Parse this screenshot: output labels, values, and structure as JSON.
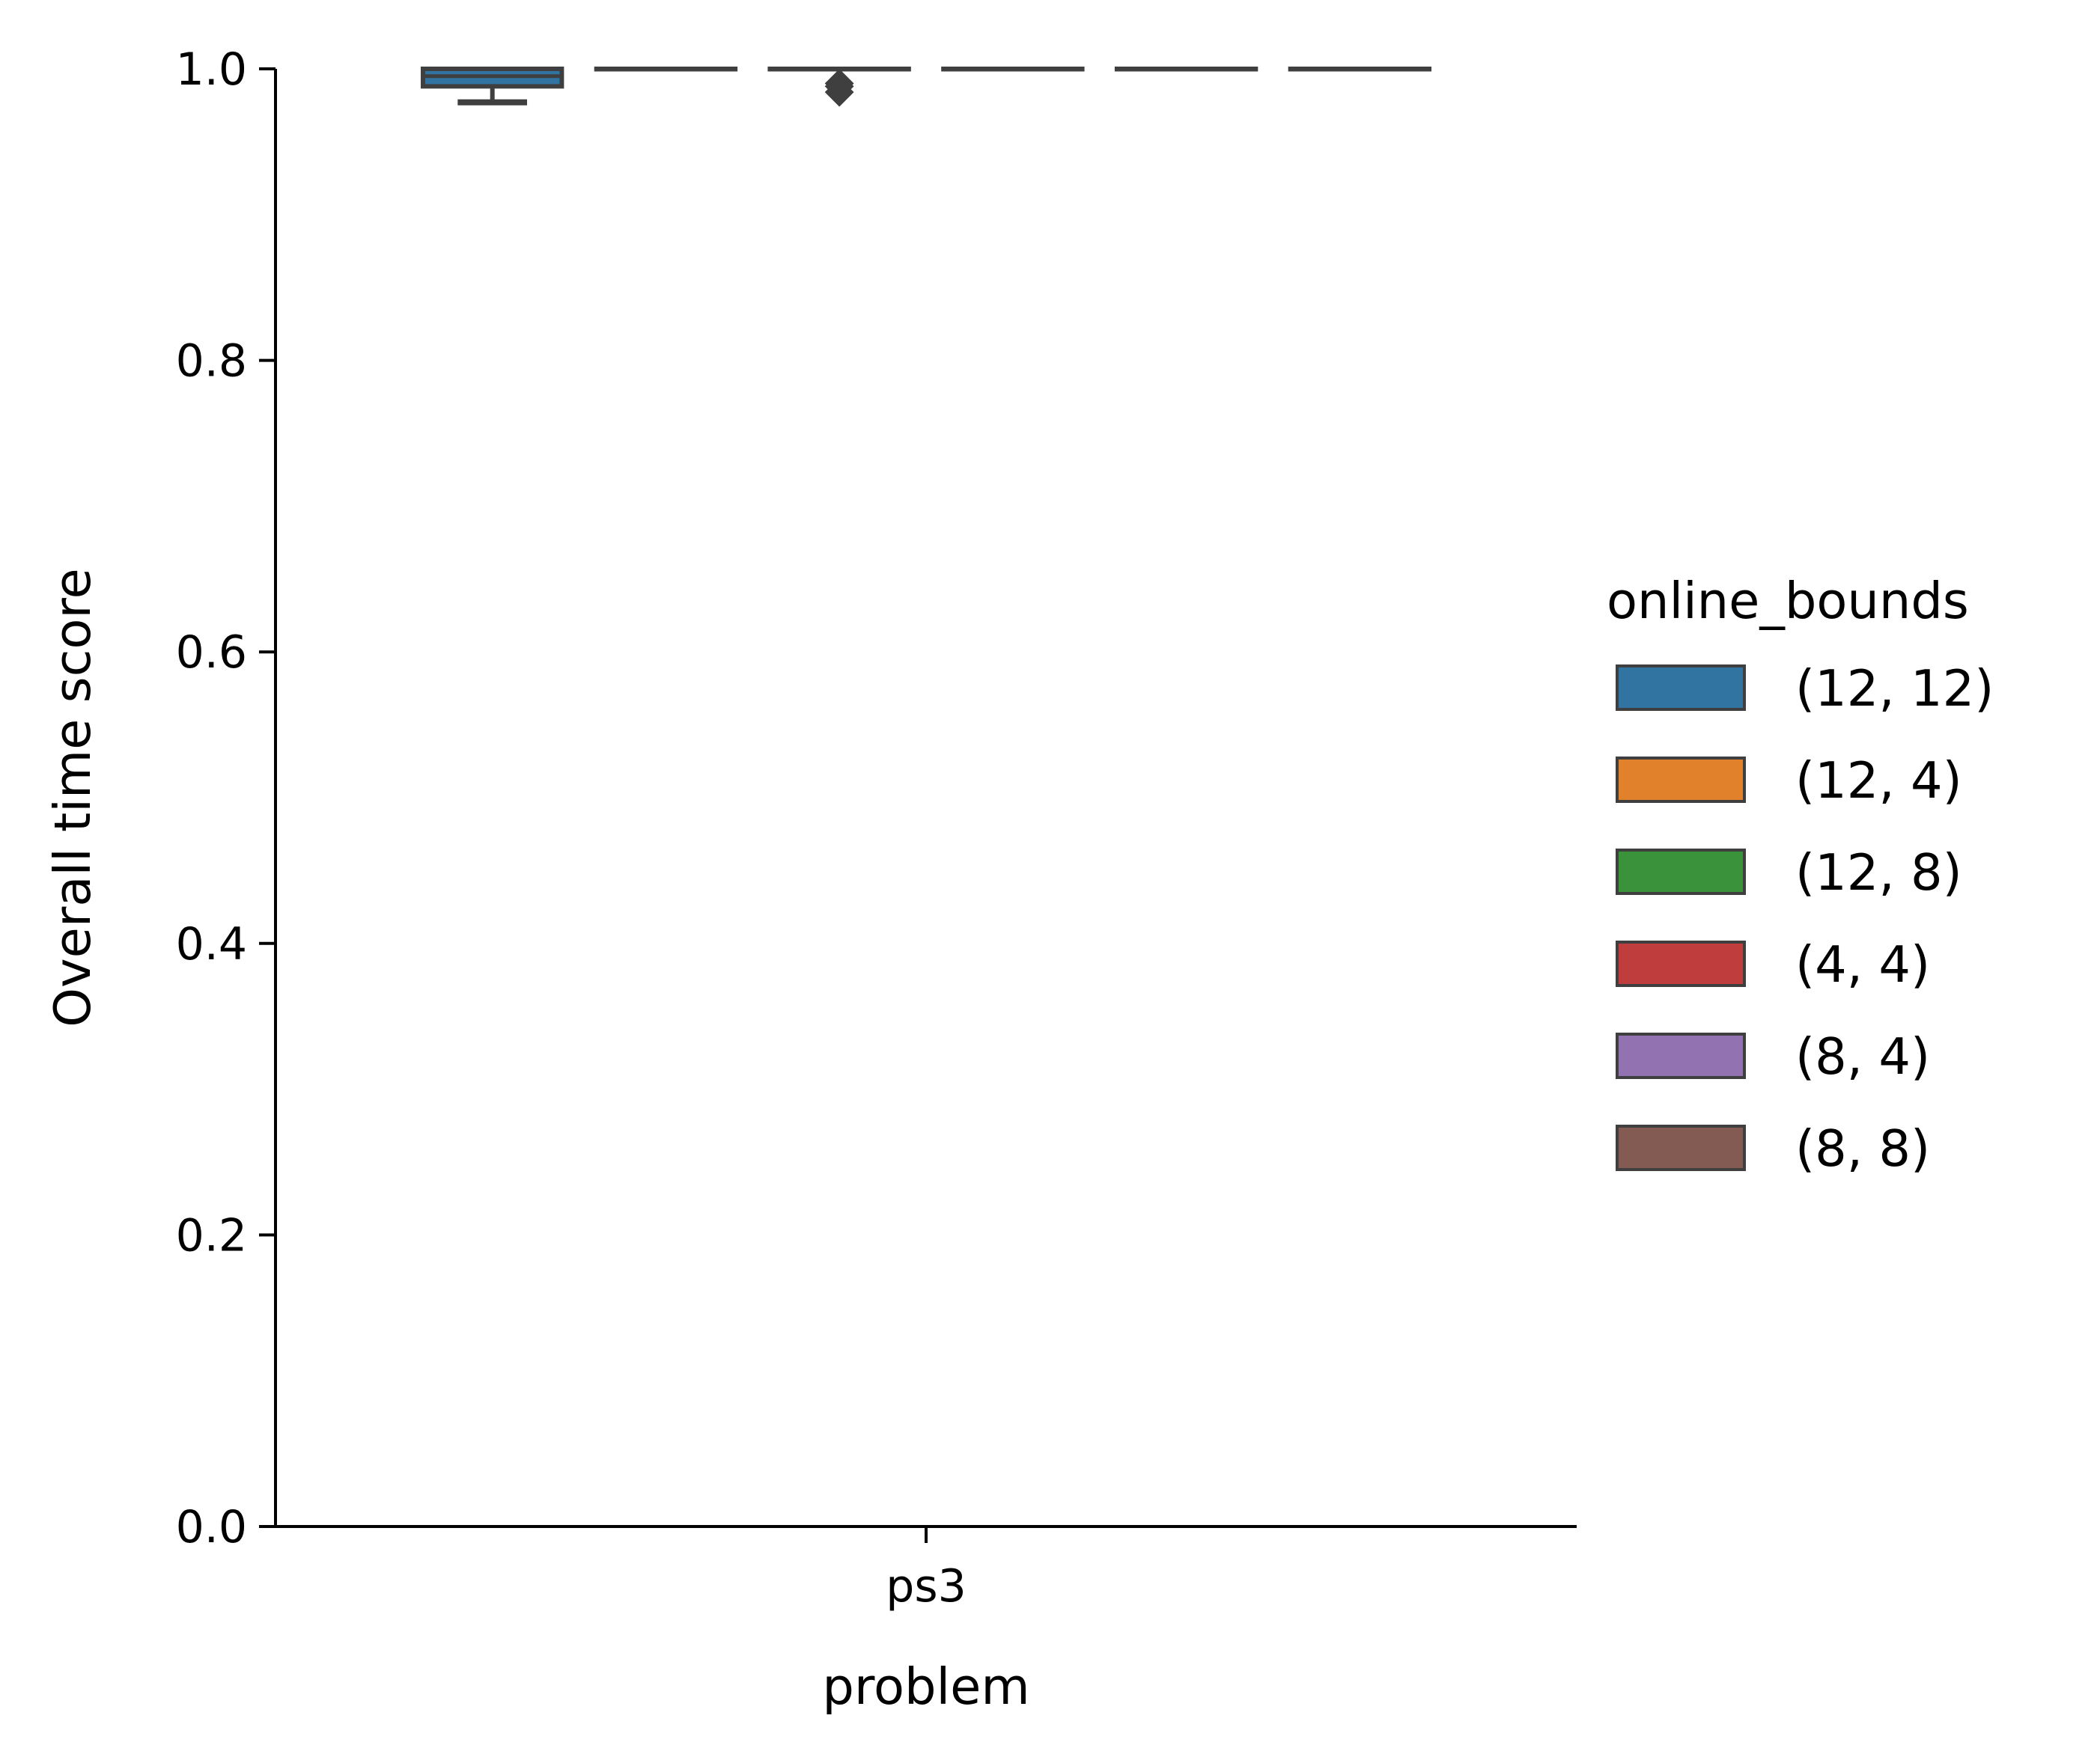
{
  "chart_data": {
    "type": "boxplot",
    "title": "",
    "xlabel": "problem",
    "ylabel": "Overall time score",
    "categories": [
      "ps3"
    ],
    "ylim": [
      0,
      1.0
    ],
    "yticks": [
      "0.0",
      "0.2",
      "0.4",
      "0.6",
      "0.8",
      "1.0"
    ],
    "grid": false,
    "legend": {
      "title": "online_bounds",
      "placement": "right",
      "entries": [
        {
          "label": "(12, 12)",
          "color": "#3274a1"
        },
        {
          "label": "(12, 4)",
          "color": "#e1812c"
        },
        {
          "label": "(12, 8)",
          "color": "#3a923a"
        },
        {
          "label": "(4, 4)",
          "color": "#c03d3e"
        },
        {
          "label": "(8, 4)",
          "color": "#9372b2"
        },
        {
          "label": "(8, 8)",
          "color": "#845b53"
        }
      ]
    },
    "series": [
      {
        "name": "(12, 12)",
        "color": "#3274a1",
        "q1": 0.988,
        "median": 0.995,
        "q3": 1.0,
        "whisker_low": 0.977,
        "whisker_high": 1.0,
        "outliers": []
      },
      {
        "name": "(12, 4)",
        "color": "#e1812c",
        "q1": 1.0,
        "median": 1.0,
        "q3": 1.0,
        "whisker_low": 1.0,
        "whisker_high": 1.0,
        "outliers": []
      },
      {
        "name": "(12, 8)",
        "color": "#3a923a",
        "q1": 1.0,
        "median": 1.0,
        "q3": 1.0,
        "whisker_low": 1.0,
        "whisker_high": 1.0,
        "outliers": [
          0.984,
          0.988,
          0.99
        ]
      },
      {
        "name": "(4, 4)",
        "color": "#c03d3e",
        "q1": 1.0,
        "median": 1.0,
        "q3": 1.0,
        "whisker_low": 1.0,
        "whisker_high": 1.0,
        "outliers": []
      },
      {
        "name": "(8, 4)",
        "color": "#9372b2",
        "q1": 1.0,
        "median": 1.0,
        "q3": 1.0,
        "whisker_low": 1.0,
        "whisker_high": 1.0,
        "outliers": []
      },
      {
        "name": "(8, 8)",
        "color": "#845b53",
        "q1": 1.0,
        "median": 1.0,
        "q3": 1.0,
        "whisker_low": 1.0,
        "whisker_high": 1.0,
        "outliers": []
      }
    ]
  }
}
